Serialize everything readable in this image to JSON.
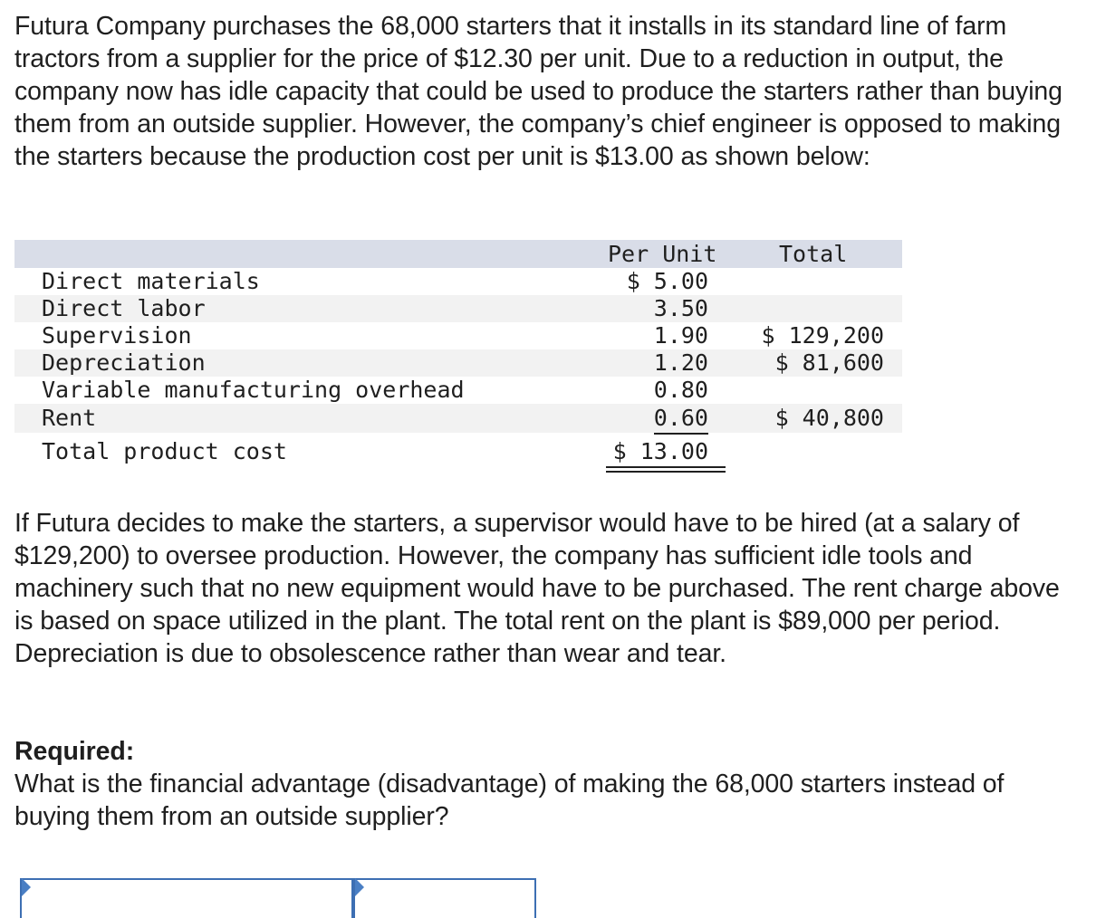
{
  "intro_text": "Futura Company purchases the 68,000 starters that it installs in its standard line of farm tractors from a supplier for the price of $12.30 per unit. Due to a reduction in output, the company now has idle capacity that could be used to produce the starters rather than buying them from an outside supplier. However, the company’s chief engineer is opposed to making the starters because the production cost per unit is $13.00 as shown below:",
  "table": {
    "headers": {
      "per_unit": "Per Unit",
      "total": "Total"
    },
    "rows": [
      {
        "label": "Direct materials",
        "per_unit": "$ 5.00",
        "total": ""
      },
      {
        "label": "Direct labor",
        "per_unit": "3.50",
        "total": ""
      },
      {
        "label": "Supervision",
        "per_unit": "1.90",
        "total": "$ 129,200"
      },
      {
        "label": "Depreciation",
        "per_unit": "1.20",
        "total": "$ 81,600"
      },
      {
        "label": "Variable manufacturing overhead",
        "per_unit": "0.80",
        "total": ""
      },
      {
        "label": "Rent",
        "per_unit": "0.60",
        "total": "$ 40,800"
      }
    ],
    "total_row": {
      "label": "Total product cost",
      "per_unit": "$ 13.00"
    }
  },
  "followup_text": "If Futura decides to make the starters, a supervisor would have to be hired (at a salary of $129,200) to oversee production. However, the company has sufficient idle tools and machinery such that no new equipment would have to be purchased. The rent charge above is based on space utilized in the plant. The total rent on the plant is $89,000 per period. Depreciation is due to obsolescence rather than wear and tear.",
  "required": {
    "heading": "Required:",
    "question": "What is the financial advantage (disadvantage) of making the 68,000 starters instead of buying them from an outside supplier?"
  },
  "answer": {
    "label_value": "",
    "amount_value": ""
  },
  "colors": {
    "header_band": "#d9dde8",
    "shaded_row": "#f2f2f2",
    "input_border": "#3d6fb3"
  }
}
